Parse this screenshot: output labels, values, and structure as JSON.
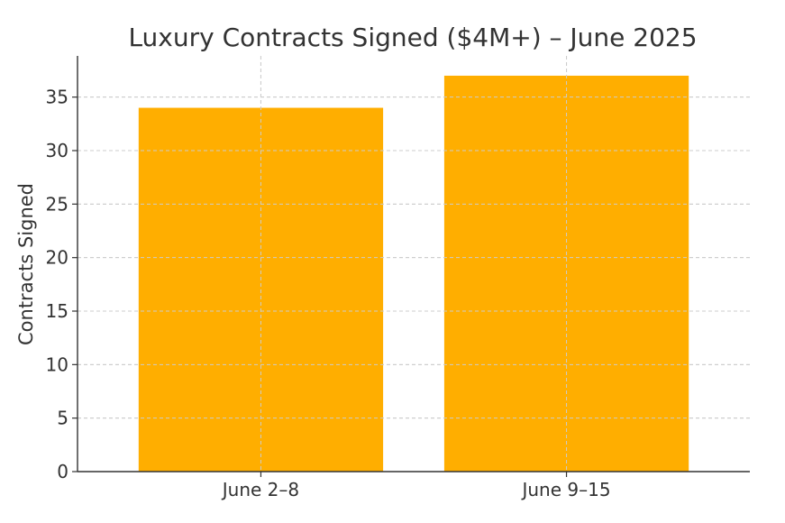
{
  "chart_data": {
    "type": "bar",
    "title": "Luxury Contracts Signed ($4M+) – June 2025",
    "xlabel": "",
    "ylabel": "Contracts Signed",
    "categories": [
      "June 2–8",
      "June 9–15"
    ],
    "values": [
      34,
      37
    ],
    "ylim": [
      0,
      38.85
    ],
    "yticks": [
      0,
      5,
      10,
      15,
      20,
      25,
      30,
      35
    ],
    "grid": true,
    "legend": "none",
    "colors": {
      "bar": "#FFAE00",
      "grid": "#cccccc",
      "axis": "#333333",
      "text": "#333333"
    }
  }
}
